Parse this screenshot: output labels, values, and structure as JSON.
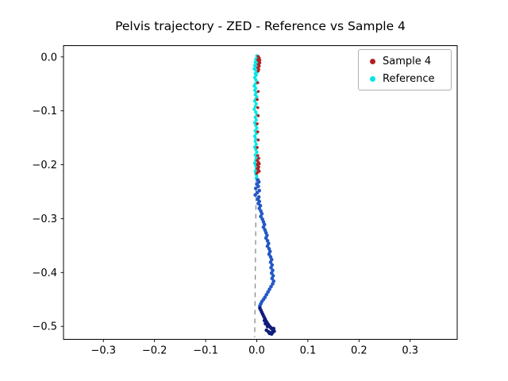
{
  "title": "Pelvis trajectory - ZED - Reference vs Sample 4",
  "legend": {
    "items": [
      {
        "label": "Sample 4",
        "color": "#b22222"
      },
      {
        "label": "Reference",
        "color": "#00e5e5"
      }
    ]
  },
  "chart_data": {
    "type": "scatter",
    "title": "Pelvis trajectory - ZED - Reference vs Sample 4",
    "xlabel": "",
    "ylabel": "",
    "grid": false,
    "legend_position": "upper right",
    "xlim": [
      -0.378,
      0.392
    ],
    "ylim": [
      -0.524,
      0.021
    ],
    "xticks": [
      -0.3,
      -0.2,
      -0.1,
      0.0,
      0.1,
      0.2,
      0.3
    ],
    "xtick_labels": [
      "−0.3",
      "−0.2",
      "−0.1",
      "0.0",
      "0.1",
      "0.2",
      "0.3"
    ],
    "yticks": [
      0.0,
      -0.1,
      -0.2,
      -0.3,
      -0.4,
      -0.5
    ],
    "ytick_labels": [
      "0.0",
      "−0.1",
      "−0.2",
      "−0.3",
      "−0.4",
      "−0.5"
    ],
    "reference_line": {
      "style": "dashed",
      "color": "#8a8a8a",
      "points": [
        [
          -0.001,
          -0.21
        ],
        [
          -0.004,
          -0.52
        ]
      ]
    },
    "series": [
      {
        "id": "reference",
        "label": "Reference",
        "color": "#00e5e5",
        "marker_radius": 2.0,
        "points": [
          [
            0.0,
            0.002
          ],
          [
            0.002,
            -0.001
          ],
          [
            -0.002,
            -0.004
          ],
          [
            0.001,
            -0.007
          ],
          [
            -0.003,
            -0.01
          ],
          [
            0.0,
            -0.013
          ],
          [
            -0.004,
            -0.016
          ],
          [
            -0.001,
            -0.019
          ],
          [
            -0.005,
            -0.022
          ],
          [
            -0.002,
            -0.025
          ],
          [
            0.001,
            -0.028
          ],
          [
            -0.003,
            -0.031
          ],
          [
            -0.001,
            -0.034
          ],
          [
            -0.004,
            -0.038
          ],
          [
            -0.002,
            -0.042
          ],
          [
            0.0,
            -0.046
          ],
          [
            -0.003,
            -0.05
          ],
          [
            -0.005,
            -0.054
          ],
          [
            -0.002,
            -0.058
          ],
          [
            -0.004,
            -0.062
          ],
          [
            -0.001,
            -0.066
          ],
          [
            -0.003,
            -0.07
          ],
          [
            0.0,
            -0.074
          ],
          [
            -0.002,
            -0.078
          ],
          [
            -0.004,
            -0.082
          ],
          [
            -0.001,
            -0.087
          ],
          [
            -0.003,
            -0.092
          ],
          [
            -0.005,
            -0.097
          ],
          [
            -0.002,
            -0.102
          ],
          [
            0.0,
            -0.107
          ],
          [
            -0.003,
            -0.112
          ],
          [
            -0.001,
            -0.117
          ],
          [
            -0.004,
            -0.122
          ],
          [
            -0.002,
            -0.127
          ],
          [
            0.0,
            -0.132
          ],
          [
            -0.003,
            -0.137
          ],
          [
            -0.001,
            -0.142
          ],
          [
            -0.004,
            -0.147
          ],
          [
            -0.002,
            -0.152
          ],
          [
            -0.003,
            -0.157
          ],
          [
            -0.001,
            -0.162
          ],
          [
            -0.004,
            -0.167
          ],
          [
            -0.002,
            -0.172
          ],
          [
            0.0,
            -0.177
          ],
          [
            -0.003,
            -0.182
          ],
          [
            -0.001,
            -0.187
          ],
          [
            -0.002,
            -0.192
          ],
          [
            -0.004,
            -0.197
          ],
          [
            -0.002,
            -0.202
          ],
          [
            -0.001,
            -0.207
          ],
          [
            -0.003,
            -0.212
          ],
          [
            -0.002,
            -0.217
          ],
          [
            0.0,
            -0.221
          ],
          [
            -0.001,
            -0.225
          ]
        ]
      },
      {
        "id": "trajectory-mid",
        "label": "",
        "color": "#2458c8",
        "marker_radius": 2.3,
        "points": [
          [
            0.002,
            -0.228
          ],
          [
            0.004,
            -0.232
          ],
          [
            0.0,
            -0.236
          ],
          [
            0.003,
            -0.24
          ],
          [
            -0.002,
            -0.244
          ],
          [
            0.005,
            -0.248
          ],
          [
            0.001,
            -0.252
          ],
          [
            -0.003,
            -0.256
          ],
          [
            0.004,
            -0.26
          ],
          [
            0.002,
            -0.264
          ],
          [
            0.005,
            -0.268
          ],
          [
            0.003,
            -0.272
          ],
          [
            0.007,
            -0.276
          ],
          [
            0.005,
            -0.281
          ],
          [
            0.008,
            -0.286
          ],
          [
            0.01,
            -0.291
          ],
          [
            0.008,
            -0.296
          ],
          [
            0.011,
            -0.301
          ],
          [
            0.013,
            -0.306
          ],
          [
            0.015,
            -0.311
          ],
          [
            0.013,
            -0.316
          ],
          [
            0.016,
            -0.321
          ],
          [
            0.018,
            -0.326
          ],
          [
            0.02,
            -0.331
          ],
          [
            0.018,
            -0.336
          ],
          [
            0.021,
            -0.341
          ],
          [
            0.023,
            -0.346
          ],
          [
            0.021,
            -0.351
          ],
          [
            0.024,
            -0.356
          ],
          [
            0.026,
            -0.361
          ],
          [
            0.024,
            -0.366
          ],
          [
            0.027,
            -0.371
          ],
          [
            0.029,
            -0.376
          ],
          [
            0.027,
            -0.381
          ],
          [
            0.03,
            -0.386
          ],
          [
            0.028,
            -0.391
          ],
          [
            0.031,
            -0.396
          ],
          [
            0.029,
            -0.401
          ],
          [
            0.032,
            -0.406
          ],
          [
            0.03,
            -0.411
          ],
          [
            0.033,
            -0.416
          ],
          [
            0.031,
            -0.421
          ],
          [
            0.028,
            -0.426
          ],
          [
            0.025,
            -0.431
          ],
          [
            0.022,
            -0.436
          ],
          [
            0.019,
            -0.441
          ],
          [
            0.016,
            -0.446
          ],
          [
            0.013,
            -0.45
          ],
          [
            0.01,
            -0.454
          ],
          [
            0.008,
            -0.458
          ],
          [
            0.006,
            -0.462
          ]
        ]
      },
      {
        "id": "trajectory-end",
        "label": "",
        "color": "#101c7a",
        "marker_radius": 2.3,
        "points": [
          [
            0.006,
            -0.466
          ],
          [
            0.008,
            -0.47
          ],
          [
            0.01,
            -0.474
          ],
          [
            0.012,
            -0.478
          ],
          [
            0.014,
            -0.482
          ],
          [
            0.016,
            -0.486
          ],
          [
            0.018,
            -0.49
          ],
          [
            0.02,
            -0.493
          ],
          [
            0.022,
            -0.496
          ],
          [
            0.024,
            -0.499
          ],
          [
            0.026,
            -0.501
          ],
          [
            0.028,
            -0.503
          ],
          [
            0.03,
            -0.505
          ],
          [
            0.032,
            -0.507
          ],
          [
            0.034,
            -0.509
          ],
          [
            0.031,
            -0.511
          ],
          [
            0.027,
            -0.512
          ],
          [
            0.023,
            -0.51
          ],
          [
            0.019,
            -0.507
          ],
          [
            0.025,
            -0.513
          ],
          [
            0.029,
            -0.514
          ],
          [
            0.033,
            -0.504
          ],
          [
            0.021,
            -0.5
          ],
          [
            0.017,
            -0.495
          ],
          [
            0.015,
            -0.489
          ]
        ]
      },
      {
        "id": "sample4",
        "label": "Sample 4",
        "color": "#b22222",
        "marker_radius": 1.8,
        "points": [
          [
            0.003,
            0.001
          ],
          [
            0.005,
            -0.002
          ],
          [
            0.002,
            -0.005
          ],
          [
            0.004,
            -0.008
          ],
          [
            0.006,
            -0.011
          ],
          [
            0.003,
            -0.014
          ],
          [
            0.005,
            -0.017
          ],
          [
            0.002,
            -0.02
          ],
          [
            0.004,
            -0.023
          ],
          [
            0.003,
            -0.026
          ],
          [
            0.006,
            -0.006
          ],
          [
            0.004,
            -0.013
          ],
          [
            0.002,
            -0.048
          ],
          [
            0.003,
            -0.064
          ],
          [
            0.001,
            -0.079
          ],
          [
            0.002,
            -0.094
          ],
          [
            0.003,
            -0.109
          ],
          [
            0.001,
            -0.124
          ],
          [
            0.002,
            -0.139
          ],
          [
            0.003,
            -0.154
          ],
          [
            0.001,
            -0.168
          ],
          [
            0.002,
            -0.183
          ],
          [
            0.004,
            -0.188
          ],
          [
            0.001,
            -0.192
          ],
          [
            0.003,
            -0.195
          ],
          [
            0.005,
            -0.198
          ],
          [
            0.002,
            -0.201
          ],
          [
            0.004,
            -0.204
          ],
          [
            0.001,
            -0.207
          ],
          [
            0.003,
            -0.21
          ],
          [
            0.005,
            -0.212
          ],
          [
            0.002,
            -0.214
          ],
          [
            0.0,
            -0.216
          ],
          [
            0.003,
            -0.206
          ],
          [
            0.001,
            -0.199
          ]
        ]
      }
    ]
  }
}
